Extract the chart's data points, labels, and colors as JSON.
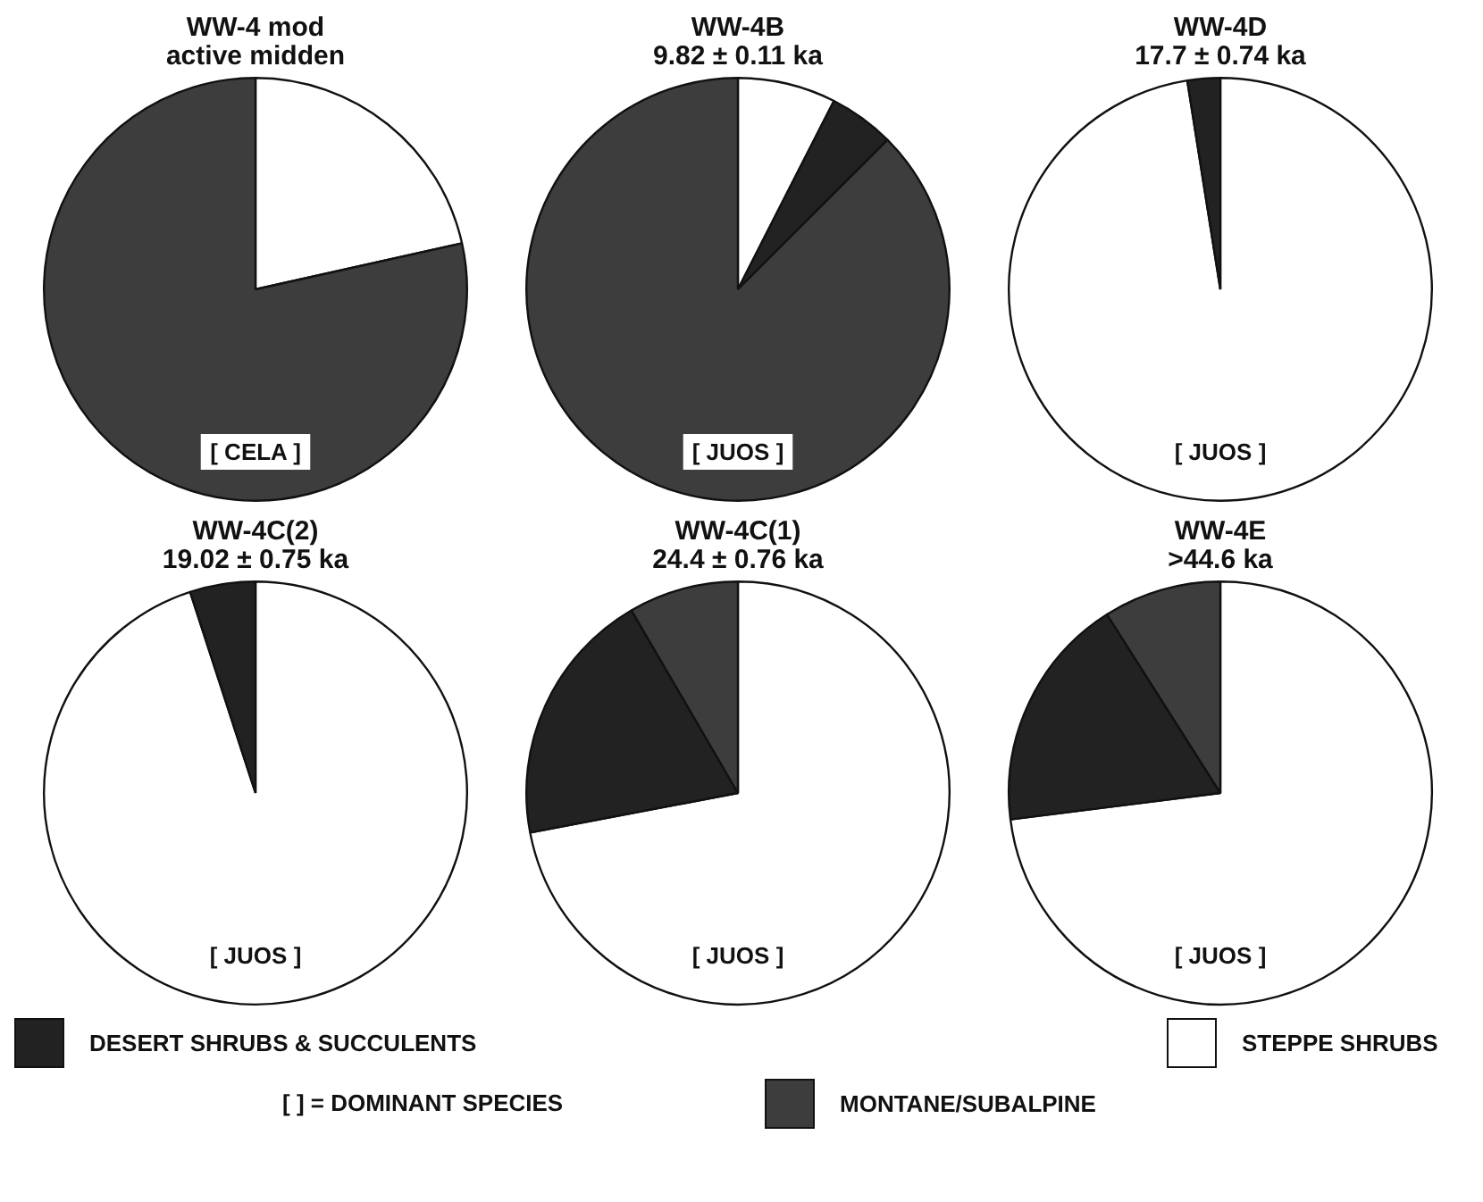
{
  "chart_data": [
    {
      "type": "pie",
      "title": "WW-4 mod",
      "subtitle": "active midden",
      "categories": [
        "STEPPE SHRUBS",
        "DESERT SHRUBS & SUCCULENTS",
        "MONTANE/SUBALPINE"
      ],
      "values": [
        21.5,
        0,
        78.5
      ],
      "colors": [
        "#ffffff",
        "#222222",
        "#3d3d3d"
      ],
      "annotations": [
        "[ CELA ]",
        "[ ] = DOMINANT SPECIES"
      ],
      "legend": "bottom"
    },
    {
      "type": "pie",
      "title": "WW-4B",
      "subtitle": "9.82 ± 0.11 ka",
      "categories": [
        null,
        null,
        null
      ],
      "values": [
        7.5,
        5,
        87.5
      ],
      "colors": [
        "#ffffff",
        "#222222",
        "#3d3d3d"
      ],
      "annotations": [
        "[ JUOS ]"
      ]
    },
    {
      "type": "pie",
      "title": "WW-4D",
      "subtitle": "17.7 ± 0.74 ka",
      "categories": [
        null,
        null,
        null
      ],
      "values": [
        97.5,
        2.5,
        0
      ],
      "colors": [
        "#ffffff",
        "#222222",
        "#3d3d3d"
      ],
      "annotations": [
        "[ JUOS ]"
      ]
    },
    {
      "type": "pie",
      "title": "WW-4C(2)",
      "subtitle": "19.02 ± 0.75 ka",
      "categories": [
        null,
        null,
        null
      ],
      "values": [
        95,
        5,
        0
      ],
      "colors": [
        "#ffffff",
        "#222222",
        "#3d3d3d"
      ],
      "annotations": [
        "[ JUOS ]"
      ]
    },
    {
      "type": "pie",
      "title": "WW-4C(1)",
      "subtitle": "24.4 ± 0.76 ka",
      "categories": [
        null,
        null,
        null
      ],
      "values": [
        72,
        19.6,
        8.4
      ],
      "colors": [
        "#ffffff",
        "#222222",
        "#3d3d3d"
      ],
      "annotations": [
        "[ JUOS ]"
      ]
    },
    {
      "type": "pie",
      "title": "WW-4E",
      "subtitle": ">44.6 ka",
      "categories": [
        null,
        null,
        null
      ],
      "values": [
        73,
        18,
        9
      ],
      "colors": [
        "#ffffff",
        "#222222",
        "#3d3d3d"
      ],
      "annotations": [
        "[ JUOS ]"
      ]
    }
  ]
}
